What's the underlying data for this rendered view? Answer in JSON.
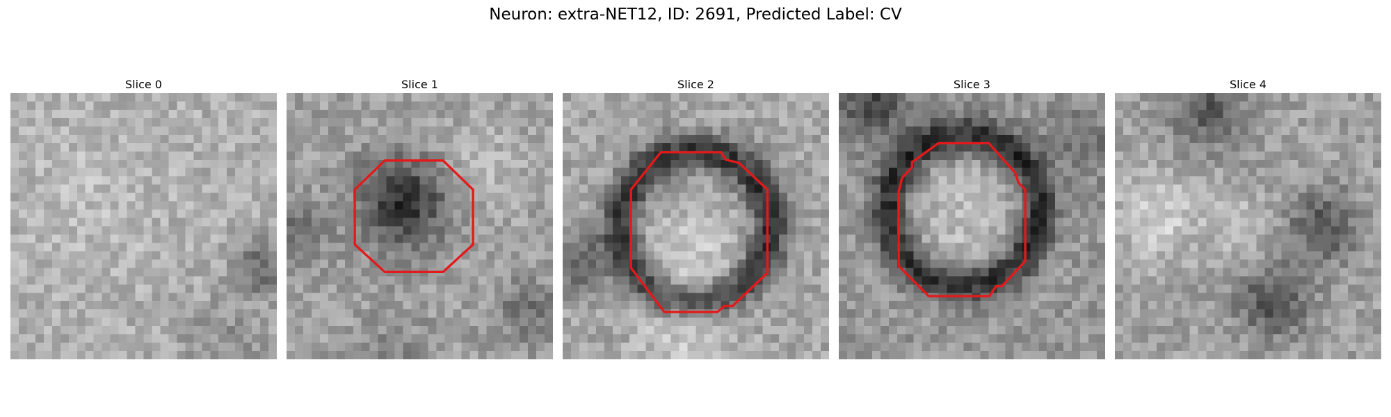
{
  "figure": {
    "title": "Neuron: extra-NET12, ID: 2691, Predicted Label: CV"
  },
  "slices": [
    {
      "title": "Slice 0",
      "has_contour": false,
      "contour_color": "#e31a1c"
    },
    {
      "title": "Slice 1",
      "has_contour": true,
      "contour_color": "#e31a1c"
    },
    {
      "title": "Slice 2",
      "has_contour": true,
      "contour_color": "#e31a1c"
    },
    {
      "title": "Slice 3",
      "has_contour": true,
      "contour_color": "#e31a1c"
    },
    {
      "title": "Slice 4",
      "has_contour": false,
      "contour_color": "#e31a1c"
    }
  ]
}
